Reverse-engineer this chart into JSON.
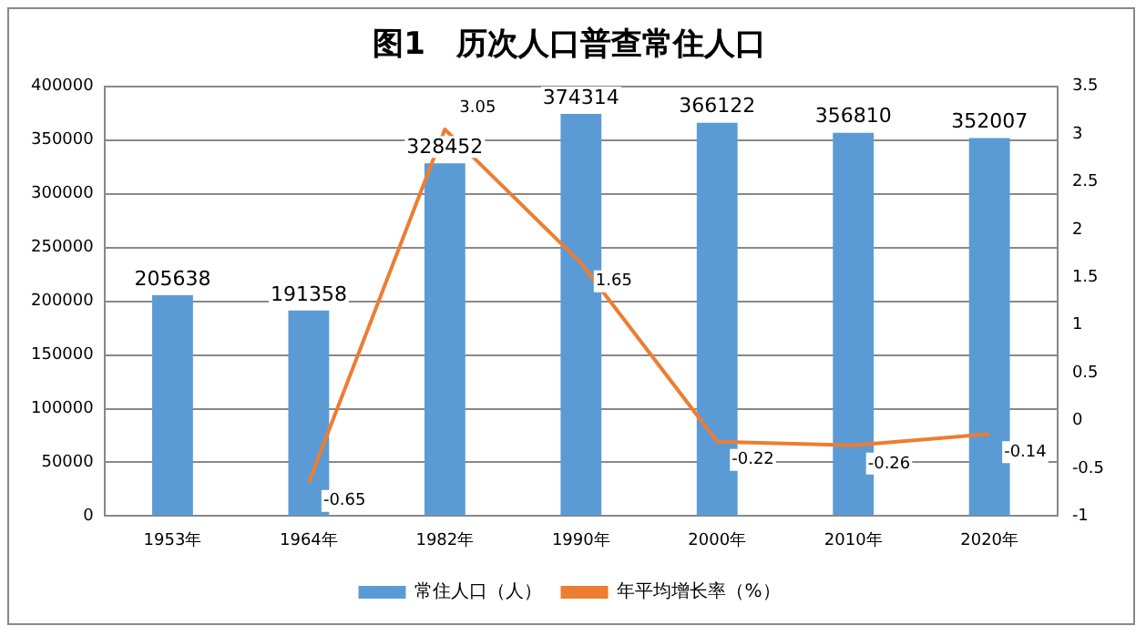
{
  "chart_data": {
    "type": "bar",
    "title": "图1　历次人口普查常住人口",
    "categories": [
      "1953年",
      "1964年",
      "1982年",
      "1990年",
      "2000年",
      "2010年",
      "2020年"
    ],
    "series": [
      {
        "name": "常住人口（人）",
        "color": "#5b9bd5",
        "values": [
          205638,
          191358,
          328452,
          374314,
          366122,
          356810,
          352007
        ]
      },
      {
        "name": "年平均增长率（%）",
        "type": "line",
        "axis": "y2",
        "color": "#ed7d31",
        "values": [
          null,
          -0.65,
          3.05,
          1.65,
          -0.22,
          -0.26,
          -0.14
        ]
      }
    ],
    "ylim": [
      0,
      400000
    ],
    "yticks": [
      0,
      50000,
      100000,
      150000,
      200000,
      250000,
      300000,
      350000,
      400000
    ],
    "y2lim": [
      -1,
      3.5
    ],
    "y2ticks": [
      -1,
      -0.5,
      0,
      0.5,
      1,
      1.5,
      2,
      2.5,
      3,
      3.5
    ],
    "grid": "y",
    "legend": "bottom",
    "data_labels": true,
    "marker": "none",
    "line_style": "solid"
  }
}
